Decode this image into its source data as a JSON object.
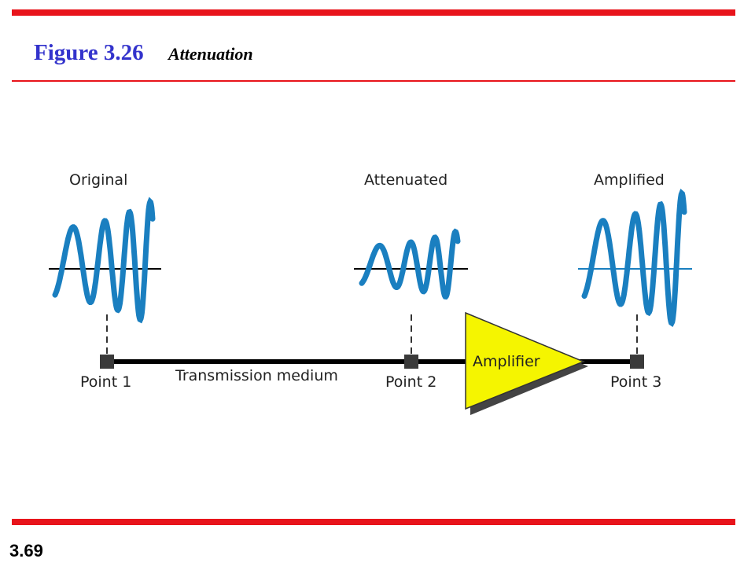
{
  "header": {
    "figure": "Figure 3.26",
    "caption": "Attenuation"
  },
  "signals": [
    {
      "label": "Original"
    },
    {
      "label": "Attenuated"
    },
    {
      "label": "Amplified"
    }
  ],
  "points": [
    {
      "label": "Point 1"
    },
    {
      "label": "Point 2"
    },
    {
      "label": "Point 3"
    }
  ],
  "medium": {
    "label": "Transmission medium"
  },
  "amplifier": {
    "label": "Amplifier"
  },
  "footer": {
    "page": "3.69"
  }
}
